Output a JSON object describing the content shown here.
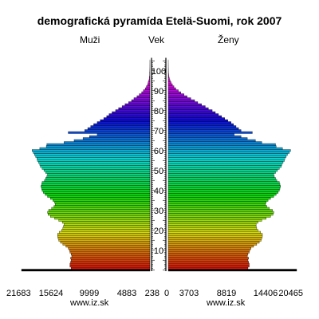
{
  "chart_data": {
    "type": "bar",
    "title": "demografická pyramída Etelä-Suomi, rok 2007",
    "left_label": "Muži",
    "center_label": "Vek",
    "right_label": "Ženy",
    "watermark": "www.iz.sk",
    "age_labels": [
      "10",
      "20",
      "30",
      "40",
      "50",
      "60",
      "70",
      "80",
      "90",
      "100"
    ],
    "x_ticks_male": [
      "21683",
      "15624",
      "9999",
      "4883",
      "238"
    ],
    "x_ticks_female": [
      "0",
      "3703",
      "8819",
      "14406",
      "20465"
    ],
    "xlim_male": [
      0,
      21683
    ],
    "xlim_female": [
      0,
      20465
    ],
    "ages": [
      0,
      1,
      2,
      3,
      4,
      5,
      6,
      7,
      8,
      9,
      10,
      11,
      12,
      13,
      14,
      15,
      16,
      17,
      18,
      19,
      20,
      21,
      22,
      23,
      24,
      25,
      26,
      27,
      28,
      29,
      30,
      31,
      32,
      33,
      34,
      35,
      36,
      37,
      38,
      39,
      40,
      41,
      42,
      43,
      44,
      45,
      46,
      47,
      48,
      49,
      50,
      51,
      52,
      53,
      54,
      55,
      56,
      57,
      58,
      59,
      60,
      61,
      62,
      63,
      64,
      65,
      66,
      67,
      68,
      69,
      70,
      71,
      72,
      73,
      74,
      75,
      76,
      77,
      78,
      79,
      80,
      81,
      82,
      83,
      84,
      85,
      86,
      87,
      88,
      89,
      90,
      91,
      92,
      93,
      94,
      95,
      96,
      97,
      98,
      99,
      100,
      101,
      102,
      103,
      104,
      105
    ],
    "series": [
      {
        "name": "Muži",
        "values": [
          21683,
          13300,
          13500,
          13500,
          13400,
          13300,
          13400,
          13200,
          13300,
          13500,
          13600,
          13800,
          14200,
          14700,
          15100,
          15400,
          15500,
          15600,
          15600,
          15300,
          14900,
          14700,
          14600,
          14500,
          14800,
          15400,
          16100,
          16800,
          17200,
          17300,
          17100,
          16600,
          16200,
          16000,
          16100,
          16400,
          16800,
          17300,
          17700,
          18000,
          18200,
          18300,
          18400,
          18300,
          18200,
          17800,
          17600,
          17400,
          17300,
          17600,
          17900,
          18200,
          18500,
          18600,
          18800,
          19000,
          19100,
          19300,
          19500,
          19700,
          19900,
          18600,
          17500,
          17400,
          14500,
          12800,
          11300,
          10200,
          8900,
          13800,
          11000,
          10500,
          10000,
          9500,
          8900,
          8400,
          7800,
          7300,
          6900,
          6400,
          5800,
          5300,
          4700,
          4200,
          3600,
          3100,
          2700,
          2200,
          1800,
          1400,
          1100,
          800,
          600,
          400,
          300,
          200,
          120,
          80,
          50,
          30,
          20,
          12,
          8,
          5,
          3,
          2
        ]
      },
      {
        "name": "Ženy",
        "values": [
          20465,
          12700,
          12900,
          12900,
          12800,
          12700,
          12800,
          12600,
          12700,
          12900,
          13000,
          13200,
          13600,
          14100,
          14500,
          14800,
          14900,
          15000,
          15000,
          14700,
          14300,
          14100,
          14000,
          14000,
          14300,
          14900,
          15600,
          16300,
          16700,
          16800,
          16600,
          16100,
          15700,
          15500,
          15600,
          15900,
          16300,
          16800,
          17200,
          17500,
          17700,
          17800,
          17900,
          17800,
          17700,
          17300,
          17100,
          16900,
          16800,
          17100,
          17400,
          17700,
          18000,
          18100,
          18300,
          18500,
          18600,
          18800,
          19000,
          19300,
          19500,
          18200,
          17200,
          17100,
          14900,
          13900,
          12600,
          11600,
          10500,
          13400,
          11600,
          11200,
          10800,
          10400,
          10000,
          9500,
          9000,
          8500,
          8000,
          7500,
          7000,
          6400,
          5900,
          5300,
          4700,
          4200,
          3600,
          3000,
          2500,
          2000,
          1600,
          1200,
          900,
          650,
          450,
          300,
          190,
          120,
          75,
          45,
          28,
          17,
          10,
          6,
          4,
          2
        ]
      }
    ]
  }
}
